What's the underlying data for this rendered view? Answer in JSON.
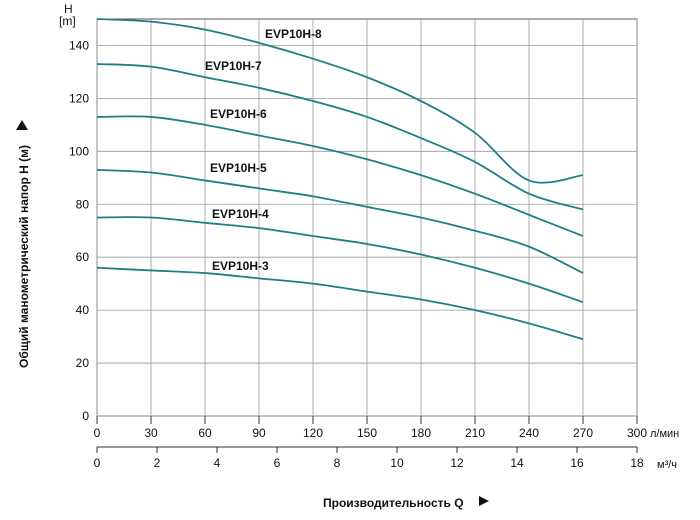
{
  "chart_data": {
    "type": "line",
    "x_axis_primary": {
      "unit": "л/мин",
      "ticks": [
        0,
        30,
        60,
        90,
        120,
        150,
        180,
        210,
        240,
        270,
        300
      ],
      "range": [
        0,
        300
      ]
    },
    "x_axis_secondary": {
      "unit": "м³/ч",
      "ticks": [
        0,
        2,
        4,
        6,
        8,
        10,
        12,
        14,
        16,
        18
      ],
      "range": [
        0,
        18
      ]
    },
    "y_axis": {
      "label_top": "H",
      "unit_top": "[m]",
      "title": "Общий манометрический напор H (м)",
      "ticks": [
        0,
        20,
        40,
        60,
        80,
        100,
        120,
        140
      ],
      "range": [
        0,
        150
      ]
    },
    "xlabel": "Производительность Q",
    "grid": true,
    "series": [
      {
        "name": "EVP10H-8",
        "x": [
          0,
          30,
          60,
          90,
          120,
          150,
          180,
          210,
          240,
          270
        ],
        "values": [
          150,
          149,
          146,
          141,
          135,
          128,
          119,
          107,
          89,
          91
        ]
      },
      {
        "name": "EVP10H-7",
        "x": [
          0,
          30,
          60,
          90,
          120,
          150,
          180,
          210,
          240,
          270
        ],
        "values": [
          133,
          132,
          128,
          124,
          119,
          113,
          105,
          96,
          84,
          78
        ]
      },
      {
        "name": "EVP10H-6",
        "x": [
          0,
          30,
          60,
          90,
          120,
          150,
          180,
          210,
          240,
          270
        ],
        "values": [
          113,
          113,
          110,
          106,
          102,
          97,
          91,
          84,
          76,
          68
        ]
      },
      {
        "name": "EVP10H-5",
        "x": [
          0,
          30,
          60,
          90,
          120,
          150,
          180,
          210,
          240,
          270
        ],
        "values": [
          93,
          92,
          89,
          86,
          83,
          79,
          75,
          70,
          64,
          54
        ]
      },
      {
        "name": "EVP10H-4",
        "x": [
          0,
          30,
          60,
          90,
          120,
          150,
          180,
          210,
          240,
          270
        ],
        "values": [
          75,
          75,
          73,
          71,
          68,
          65,
          61,
          56,
          50,
          43
        ]
      },
      {
        "name": "EVP10H-3",
        "x": [
          0,
          30,
          60,
          90,
          120,
          150,
          180,
          210,
          240,
          270
        ],
        "values": [
          56,
          55,
          54,
          52,
          50,
          47,
          44,
          40,
          35,
          29
        ]
      }
    ],
    "line_color": "#1f7e86"
  }
}
